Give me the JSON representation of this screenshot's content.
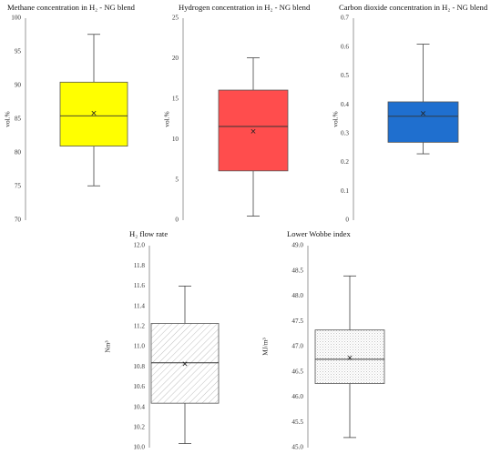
{
  "chart_data": [
    {
      "type": "box",
      "title": "Methane concentration in H₂ - NG blend",
      "ylabel": "vol.%",
      "ylim": [
        70,
        100
      ],
      "yticks": [
        "100",
        "95",
        "90",
        "85",
        "80",
        "75",
        "70"
      ],
      "series": [
        {
          "min": 75.1,
          "q1": 81.0,
          "median": 85.5,
          "mean": 85.9,
          "q3": 90.5,
          "max": 97.6
        }
      ],
      "fill": "#ffff00",
      "pattern": "none"
    },
    {
      "type": "box",
      "title": "Hydrogen concentration in H₂ - NG blend",
      "ylabel": "vol.%",
      "ylim": [
        0,
        25
      ],
      "yticks": [
        "25",
        "20",
        "15",
        "10",
        "5",
        "0"
      ],
      "series": [
        {
          "min": 0.5,
          "q1": 6.1,
          "median": 11.6,
          "mean": 11.0,
          "q3": 16.1,
          "max": 20.1
        }
      ],
      "fill": "#ff4d4d",
      "pattern": "none"
    },
    {
      "type": "box",
      "title": "Carbon dioxide concentration in H₂ - NG blend",
      "ylabel": "vol.%",
      "ylim": [
        0,
        0.7
      ],
      "yticks": [
        "0.7",
        "0.6",
        "0.5",
        "0.4",
        "0.3",
        "0.2",
        "0.1",
        "0"
      ],
      "series": [
        {
          "min": 0.23,
          "q1": 0.27,
          "median": 0.36,
          "mean": 0.37,
          "q3": 0.41,
          "max": 0.61
        }
      ],
      "fill": "#1f6fcf",
      "pattern": "none"
    },
    {
      "type": "box",
      "title": "H₂ flow rate",
      "ylabel": "Nm³",
      "ylim": [
        10.0,
        12.0
      ],
      "yticks": [
        "12.0",
        "11.8",
        "11.6",
        "11.4",
        "11.2",
        "11.0",
        "10.8",
        "10.6",
        "10.4",
        "10.2",
        "10.0"
      ],
      "series": [
        {
          "min": 10.04,
          "q1": 10.44,
          "median": 10.84,
          "mean": 10.83,
          "q3": 11.23,
          "max": 11.6
        }
      ],
      "fill": "#ffffff",
      "pattern": "diagonal"
    },
    {
      "type": "box",
      "title": "Lower Wobbe index",
      "ylabel": "MJ/m³",
      "ylim": [
        45.0,
        49.0
      ],
      "yticks": [
        "49.0",
        "48.5",
        "48.0",
        "47.5",
        "47.0",
        "46.5",
        "46.0",
        "45.5",
        "45.0"
      ],
      "series": [
        {
          "min": 45.2,
          "q1": 46.27,
          "median": 46.75,
          "mean": 46.78,
          "q3": 47.33,
          "max": 48.4
        }
      ],
      "fill": "#ffffff",
      "pattern": "dots"
    }
  ]
}
